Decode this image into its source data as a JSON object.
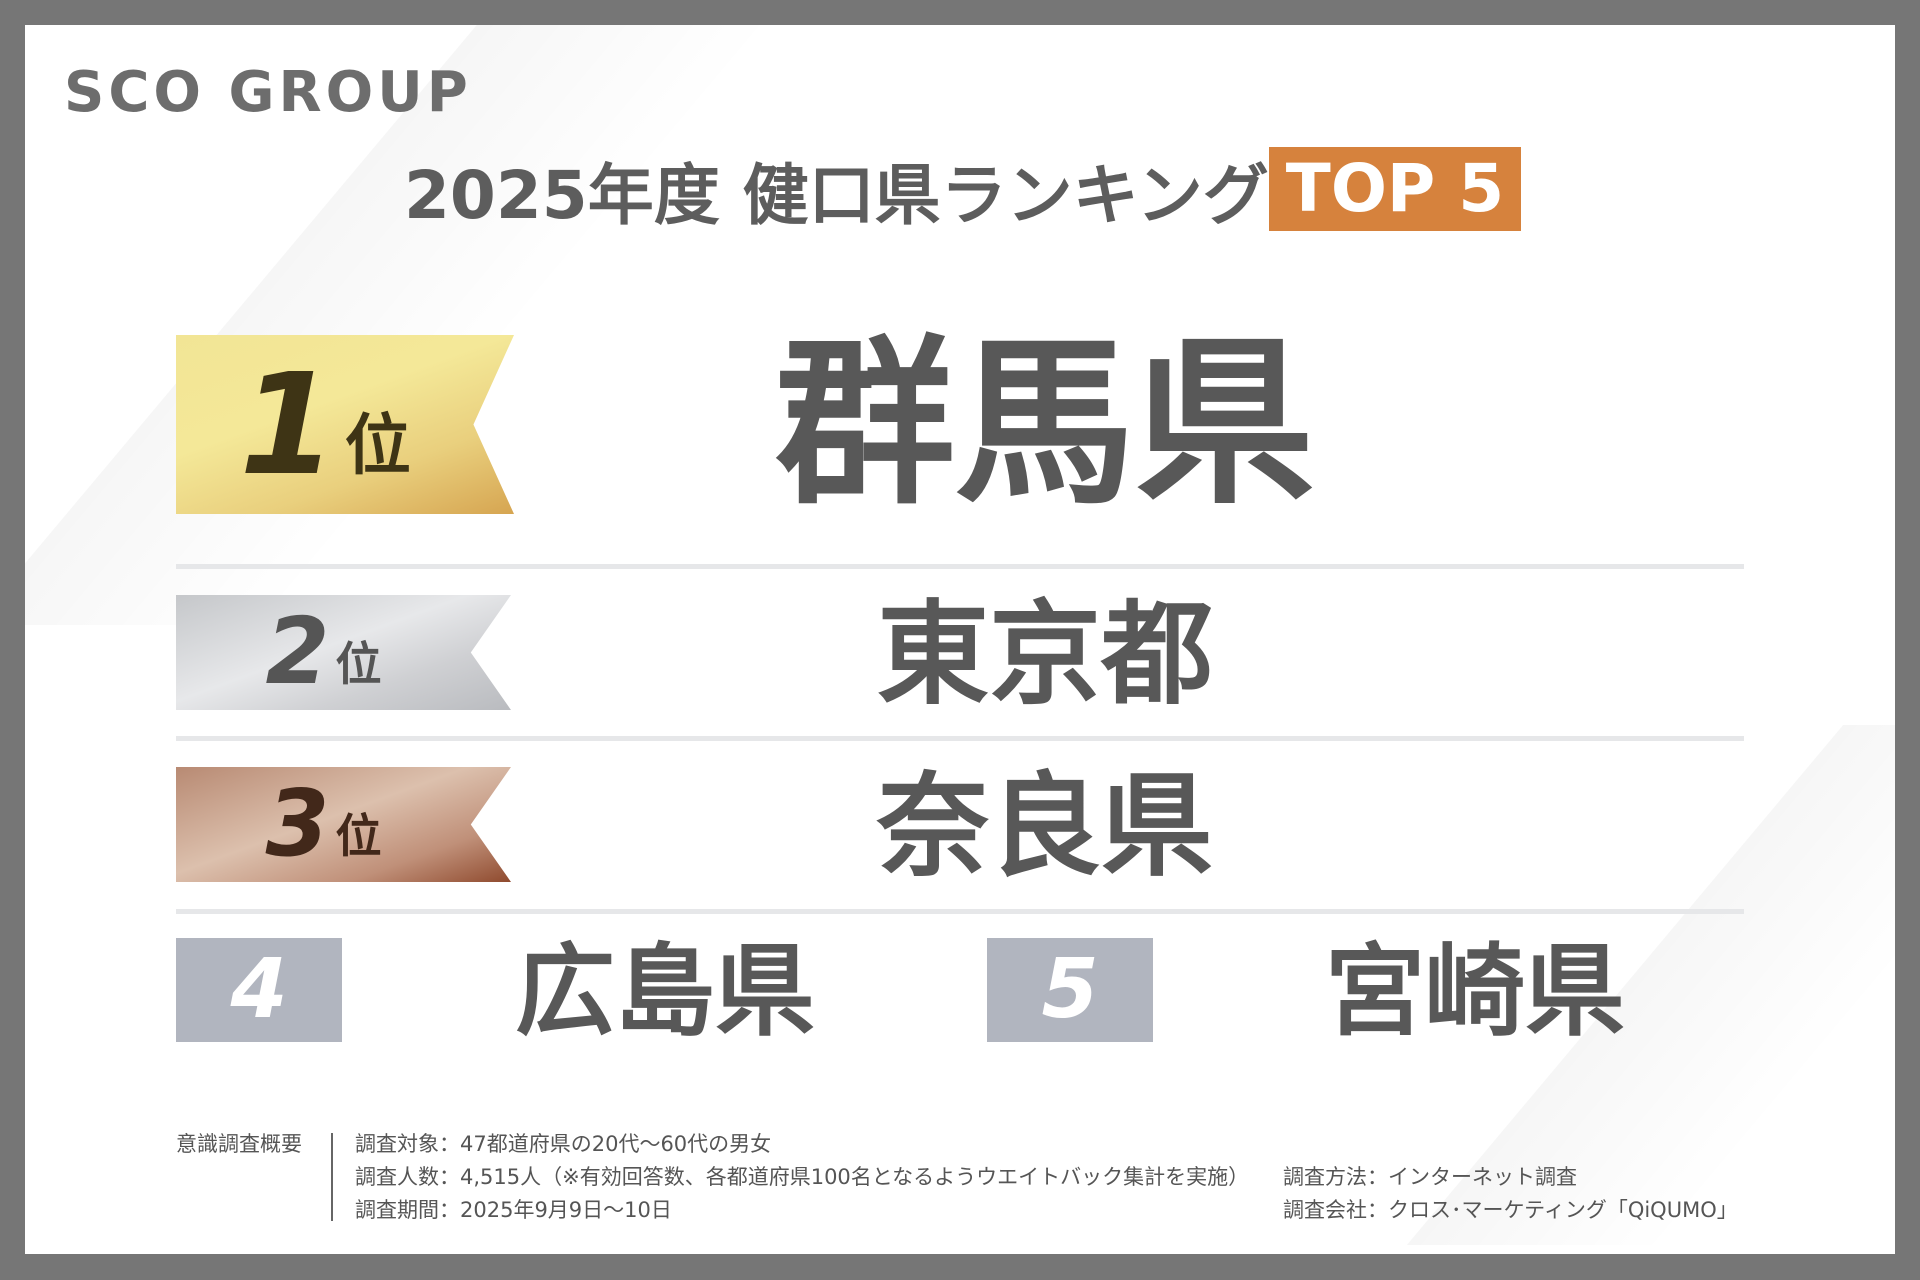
{
  "logo": "SCO GROUP",
  "header": {
    "title": "2025年度 健口県ランキング",
    "badge": "TOP 5",
    "badge_color": "#d6823d"
  },
  "ranking": [
    {
      "rank": "1",
      "suffix": "位",
      "name": "群馬県",
      "medal": "gold"
    },
    {
      "rank": "2",
      "suffix": "位",
      "name": "東京都",
      "medal": "silver"
    },
    {
      "rank": "3",
      "suffix": "位",
      "name": "奈良県",
      "medal": "bronze"
    },
    {
      "rank": "4",
      "name": "広島県"
    },
    {
      "rank": "5",
      "name": "宮崎県"
    }
  ],
  "survey": {
    "label": "意識調査概要",
    "target": "調査対象：47都道府県の20代〜60代の男女",
    "respondents": "調査人数：4,515人（※有効回答数、各都道府県100名となるようウエイトバック集計を実施）",
    "period": "調査期間：2025年9月9日〜10日",
    "method": "調査方法：インターネット調査",
    "company": "調査会社：クロス･マーケティング「QiQUMO」"
  }
}
